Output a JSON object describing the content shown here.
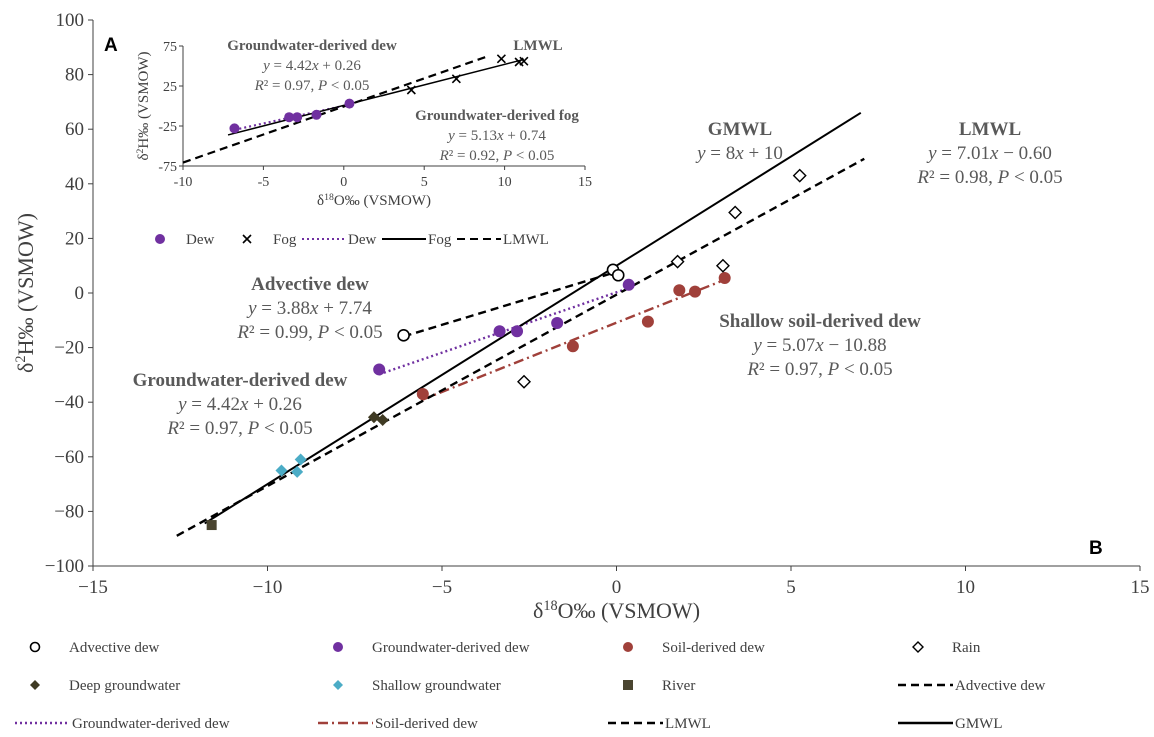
{
  "chart_data": [
    {
      "type": "scatter",
      "panel": "B",
      "xlabel": "δ18O‰ (VSMOW)",
      "ylabel": "δ2H‰ (VSMOW)",
      "xlim": [
        -15,
        15
      ],
      "ylim": [
        -100,
        100
      ],
      "xticks": [
        "−15",
        "−10",
        "−5",
        "0",
        "5",
        "10",
        "15"
      ],
      "yticks": [
        "−100",
        "−80",
        "−60",
        "−40",
        "−20",
        "0",
        "20",
        "40",
        "60",
        "80",
        "100"
      ],
      "grid": false,
      "legend_position": "bottom",
      "series": [
        {
          "name": "Advective dew",
          "marker": "circle-open",
          "color": "#000000",
          "points": [
            [
              -6.1,
              -15.5
            ],
            [
              -0.1,
              8.5
            ],
            [
              0.05,
              6.5
            ]
          ]
        },
        {
          "name": "Groundwater-derived dew",
          "marker": "circle",
          "color": "#7030a0",
          "points": [
            [
              -6.8,
              -28
            ],
            [
              -3.35,
              -14
            ],
            [
              -2.85,
              -14
            ],
            [
              -1.7,
              -11
            ],
            [
              0.35,
              3
            ]
          ]
        },
        {
          "name": "Soil-derived dew",
          "marker": "circle",
          "color": "#a0403a",
          "points": [
            [
              -5.55,
              -37
            ],
            [
              -1.25,
              -19.5
            ],
            [
              0.9,
              -10.5
            ],
            [
              1.8,
              1
            ],
            [
              2.25,
              0.5
            ],
            [
              3.1,
              5.5
            ]
          ]
        },
        {
          "name": "Rain",
          "marker": "diamond-open",
          "color": "#000000",
          "points": [
            [
              -2.65,
              -32.5
            ],
            [
              1.75,
              11.5
            ],
            [
              3.05,
              10
            ],
            [
              3.4,
              29.5
            ],
            [
              5.25,
              43
            ]
          ]
        },
        {
          "name": "Deep groundwater",
          "marker": "diamond",
          "color": "#3f3a23",
          "points": [
            [
              -6.95,
              -45.5
            ],
            [
              -6.7,
              -46.5
            ]
          ]
        },
        {
          "name": "Shallow groundwater",
          "marker": "diamond",
          "color": "#4bacc6",
          "points": [
            [
              -9.6,
              -65
            ],
            [
              -9.15,
              -65.5
            ],
            [
              -9.05,
              -61
            ]
          ]
        },
        {
          "name": "River",
          "marker": "square",
          "color": "#4a4530",
          "points": [
            [
              -11.6,
              -85
            ]
          ]
        }
      ],
      "lines": [
        {
          "name": "Advective dew",
          "style": "dash",
          "color": "#000000",
          "x": [
            -6.1,
            -0.1
          ],
          "slope": 3.88,
          "intercept": 7.74
        },
        {
          "name": "Groundwater-derived dew",
          "style": "dot",
          "color": "#7030a0",
          "x": [
            -6.8,
            0.35
          ],
          "slope": 4.42,
          "intercept": 0.26
        },
        {
          "name": "Soil-derived dew",
          "style": "dashdot",
          "color": "#a0403a",
          "x": [
            -5.6,
            3.1
          ],
          "slope": 5.07,
          "intercept": -10.88
        },
        {
          "name": "LMWL",
          "style": "dash",
          "color": "#000000",
          "x": [
            -12.6,
            7.1
          ],
          "slope": 7.01,
          "intercept": -0.6
        },
        {
          "name": "GMWL",
          "style": "solid",
          "color": "#000000",
          "x": [
            -11.8,
            7.0
          ],
          "slope": 8,
          "intercept": 10
        }
      ],
      "annotations": [
        {
          "title": "Advective dew",
          "eq": "y = 3.88x + 7.74",
          "fit": "R² = 0.99, P < 0.05"
        },
        {
          "title": "Groundwater-derived dew",
          "eq": "y = 4.42x + 0.26",
          "fit": "R² = 0.97, P < 0.05"
        },
        {
          "title": "Shallow soil-derived dew",
          "eq": "y = 5.07x − 10.88",
          "fit": "R² = 0.97, P < 0.05"
        },
        {
          "title": "GMWL",
          "eq": "y = 8x + 10",
          "fit": ""
        },
        {
          "title": "LMWL",
          "eq": "y = 7.01x − 0.60",
          "fit": "R² = 0.98, P < 0.05"
        }
      ]
    },
    {
      "type": "scatter",
      "panel": "A",
      "xlabel": "δ18O‰ (VSMOW)",
      "ylabel": "δ2H‰ (VSMOW)",
      "xlim": [
        -10,
        15
      ],
      "ylim": [
        -75,
        75
      ],
      "xticks": [
        "-10",
        "-5",
        "0",
        "5",
        "10",
        "15"
      ],
      "yticks": [
        "-75",
        "-25",
        "25",
        "75"
      ],
      "grid": false,
      "series": [
        {
          "name": "Dew",
          "marker": "circle",
          "color": "#7030a0",
          "points": [
            [
              -6.8,
              -28
            ],
            [
              -3.4,
              -14
            ],
            [
              -2.9,
              -14
            ],
            [
              -1.7,
              -11
            ],
            [
              0.35,
              3
            ]
          ]
        },
        {
          "name": "Fog",
          "marker": "x",
          "color": "#000000",
          "points": [
            [
              4.2,
              20
            ],
            [
              7.0,
              34
            ],
            [
              9.8,
              59
            ],
            [
              10.9,
              55
            ],
            [
              11.2,
              56
            ]
          ]
        }
      ],
      "lines": [
        {
          "name": "Dew",
          "style": "dot",
          "color": "#7030a0",
          "x": [
            -6.8,
            0.35
          ],
          "slope": 4.42,
          "intercept": 0.26
        },
        {
          "name": "Fog",
          "style": "solid",
          "color": "#000000",
          "x": [
            -7.2,
            11.2
          ],
          "slope": 5.13,
          "intercept": 0.74
        },
        {
          "name": "LMWL",
          "style": "dash",
          "color": "#000000",
          "x": [
            -10,
            9.0
          ],
          "slope": 7.01,
          "intercept": -0.6
        }
      ],
      "annotations": [
        {
          "title": "Groundwater-derived dew",
          "eq": "y = 4.42x + 0.26",
          "fit": "R² = 0.97, P < 0.05"
        },
        {
          "title": "LMWL",
          "eq": "",
          "fit": ""
        },
        {
          "title": "Groundwater-derived fog",
          "eq": "y = 5.13x + 0.74",
          "fit": "R² = 0.92, P < 0.05"
        }
      ],
      "legend": [
        {
          "label": "Dew",
          "symbol": "circle",
          "color": "#7030a0"
        },
        {
          "label": "Fog",
          "symbol": "x",
          "color": "#000000"
        },
        {
          "label": "Dew",
          "symbol": "dot-line",
          "color": "#7030a0"
        },
        {
          "label": "Fog",
          "symbol": "solid-line",
          "color": "#000000"
        },
        {
          "label": "LMWL",
          "symbol": "dash-line",
          "color": "#000000"
        }
      ]
    }
  ],
  "labels": {
    "panel_a": "A",
    "panel_b": "B"
  },
  "legend": [
    {
      "label": "Advective dew",
      "symbol": "circle-open",
      "color": "#000000"
    },
    {
      "label": "Groundwater-derived dew",
      "symbol": "circle",
      "color": "#7030a0"
    },
    {
      "label": "Soil-derived dew",
      "symbol": "circle",
      "color": "#a0403a"
    },
    {
      "label": "Rain",
      "symbol": "diamond-open",
      "color": "#000000"
    },
    {
      "label": "Deep groundwater",
      "symbol": "diamond",
      "color": "#3f3a23"
    },
    {
      "label": "Shallow groundwater",
      "symbol": "diamond",
      "color": "#4bacc6"
    },
    {
      "label": "River",
      "symbol": "square",
      "color": "#4a4530"
    },
    {
      "label": "Advective dew",
      "symbol": "dash-line",
      "color": "#000000"
    },
    {
      "label": "Groundwater-derived dew",
      "symbol": "dot-line",
      "color": "#7030a0"
    },
    {
      "label": "Soil-derived dew",
      "symbol": "dashdot-line",
      "color": "#a0403a"
    },
    {
      "label": "LMWL",
      "symbol": "dash-line",
      "color": "#000000"
    },
    {
      "label": "GMWL",
      "symbol": "solid-line",
      "color": "#000000"
    }
  ]
}
